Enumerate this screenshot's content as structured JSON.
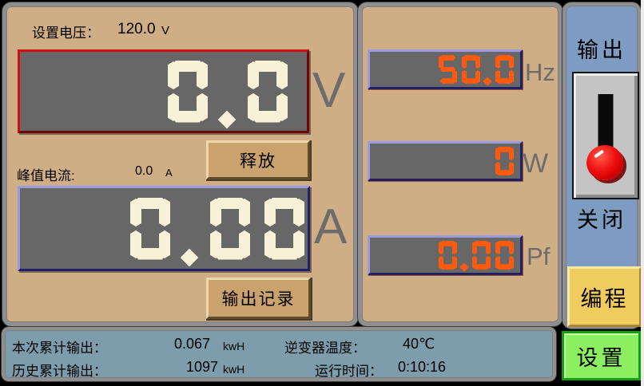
{
  "colors": {
    "panel_tan": "#cfae85",
    "display_gray": "#676767",
    "digit_cream": "#f7f1d7",
    "digit_orange": "#ff5a0e",
    "right_panel_blue": "#7e9cc2",
    "status_bar_blue": "#7e9dac",
    "program_yellow": "#f0cb5e",
    "settings_green": "#8cef62",
    "voltage_border_red": "#d01010",
    "display_border_blue": "#9a9ae0"
  },
  "left_panel": {
    "set_voltage_label": "设置电压：",
    "set_voltage_value": "120.0",
    "set_voltage_unit": "V",
    "voltage_display": "0.0",
    "voltage_unit": "V",
    "release_button": "释放",
    "peak_current_label": "峰值电流:",
    "peak_current_value": "0.0",
    "peak_current_unit": "A",
    "current_display": "0.00",
    "current_unit": "A",
    "output_record_button": "输出记录"
  },
  "middle_panel": {
    "frequency": {
      "value": "50.0",
      "unit": "Hz"
    },
    "power": {
      "value": "0",
      "unit": "W"
    },
    "power_factor": {
      "value": "0.00",
      "unit": "Pf"
    }
  },
  "right_panel": {
    "output_label": "输出",
    "switch_state": "off",
    "close_label": "关闭",
    "program_button": "编程",
    "settings_button": "设置"
  },
  "status_bar": {
    "session_output_label": "本次累计输出：",
    "session_output_value": "0.067",
    "session_output_unit": "kwH",
    "history_output_label": "历史累计输出：",
    "history_output_value": "1097",
    "history_output_unit": "kwH",
    "inverter_temp_label": "逆变器温度：",
    "inverter_temp_value": "40℃",
    "runtime_label": "运行时间：",
    "runtime_value": "0:10:16"
  }
}
